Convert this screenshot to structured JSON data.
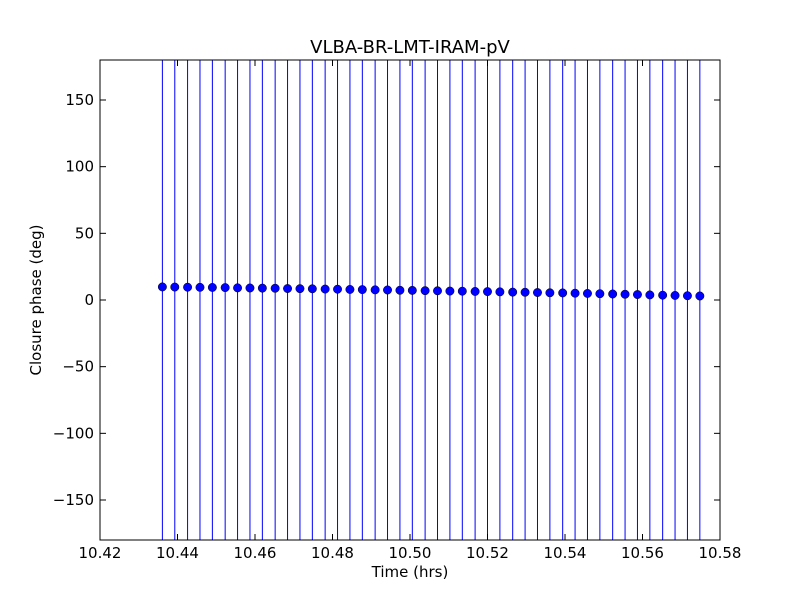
{
  "chart_data": {
    "type": "scatter",
    "title": "VLBA-BR-LMT-IRAM-pV",
    "xlabel": "Time (hrs)",
    "ylabel": "Closure phase (deg)",
    "xlim": [
      10.42,
      10.58
    ],
    "ylim": [
      -180,
      180
    ],
    "xticks": [
      10.42,
      10.44,
      10.46,
      10.48,
      10.5,
      10.52,
      10.54,
      10.56,
      10.58
    ],
    "xtick_labels": [
      "10.42",
      "10.44",
      "10.46",
      "10.48",
      "10.50",
      "10.52",
      "10.54",
      "10.56",
      "10.58"
    ],
    "yticks": [
      -150,
      -100,
      -50,
      0,
      50,
      100,
      150
    ],
    "ytick_labels": [
      "−150",
      "−100",
      "−50",
      "0",
      "50",
      "100",
      "150"
    ],
    "grid": false,
    "marker_color": "#0000ff",
    "errorbar_color": "#0000ff",
    "series": [
      {
        "x": [
          10.4361,
          10.4393,
          10.4426,
          10.4458,
          10.449,
          10.4523,
          10.4555,
          10.4587,
          10.4619,
          10.4652,
          10.4684,
          10.4716,
          10.4748,
          10.4781,
          10.4813,
          10.4845,
          10.4877,
          10.491,
          10.4942,
          10.4974,
          10.5006,
          10.5039,
          10.5071,
          10.5103,
          10.5135,
          10.5168,
          10.52,
          10.5232,
          10.5265,
          10.5297,
          10.5329,
          10.5361,
          10.5394,
          10.5426,
          10.5458,
          10.549,
          10.5523,
          10.5555,
          10.5587,
          10.5619,
          10.5652,
          10.5684,
          10.5716,
          10.5748
        ],
        "y": [
          9.8,
          9.7,
          9.6,
          9.5,
          9.4,
          9.3,
          9.1,
          9.0,
          8.9,
          8.8,
          8.6,
          8.5,
          8.4,
          8.2,
          8.1,
          7.9,
          7.8,
          7.6,
          7.5,
          7.3,
          7.2,
          7.0,
          6.9,
          6.7,
          6.6,
          6.4,
          6.3,
          6.1,
          5.9,
          5.8,
          5.6,
          5.4,
          5.3,
          5.1,
          4.9,
          4.7,
          4.5,
          4.3,
          4.1,
          3.8,
          3.6,
          3.4,
          3.2,
          3.0
        ],
        "yerr_low": -180,
        "yerr_high": 180
      }
    ]
  }
}
